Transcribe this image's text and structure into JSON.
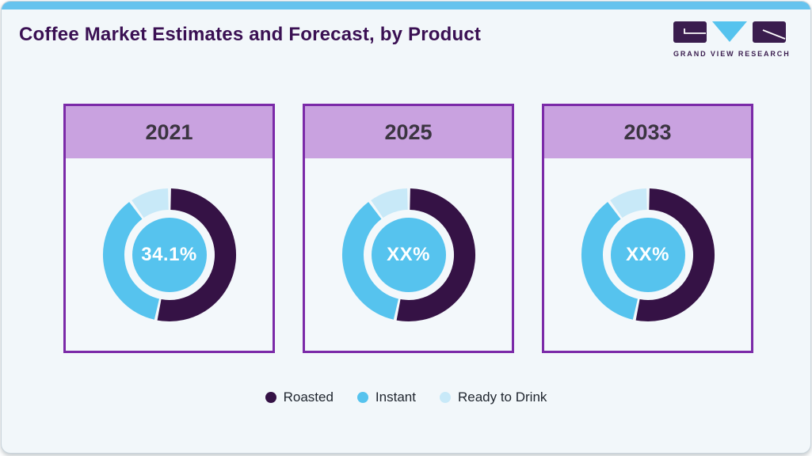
{
  "page": {
    "title": "Coffee Market Estimates and Forecast, by Product"
  },
  "logo": {
    "brand": "GRAND VIEW RESEARCH"
  },
  "chart_data": {
    "type": "pie",
    "variant": "donut",
    "title": "Coffee Market Estimates and Forecast, by Product",
    "legend_position": "bottom",
    "start_angle_deg": 0,
    "clockwise": true,
    "categories": [
      "Roasted",
      "Instant",
      "Ready to Drink"
    ],
    "colors": [
      "#351245",
      "#56C3EE",
      "#C8E9F8"
    ],
    "charts": [
      {
        "year": "2021",
        "center_label": "34.1%",
        "values_pct_estimated": [
          53.3,
          36.7,
          10.0
        ]
      },
      {
        "year": "2025",
        "center_label": "XX%",
        "values_pct_estimated": [
          53.3,
          36.7,
          10.0
        ]
      },
      {
        "year": "2033",
        "center_label": "XX%",
        "values_pct_estimated": [
          53.3,
          36.7,
          10.0
        ]
      }
    ]
  },
  "legend": {
    "items": [
      {
        "label": "Roasted",
        "color": "#351245"
      },
      {
        "label": "Instant",
        "color": "#56C3EE"
      },
      {
        "label": "Ready to Drink",
        "color": "#C8E9F8"
      }
    ]
  },
  "colors": {
    "top_accent_bar": "#66C3EE",
    "background": "#F2F7FA",
    "card_border": "#7B2AA8",
    "card_header_bg": "#C9A2E0",
    "title_text": "#3A1053",
    "donut_center_fill": "#56C3EE",
    "center_label_text": "#FFFFFF",
    "logo_dark": "#3A1D4E",
    "logo_blue": "#56C3EE"
  }
}
